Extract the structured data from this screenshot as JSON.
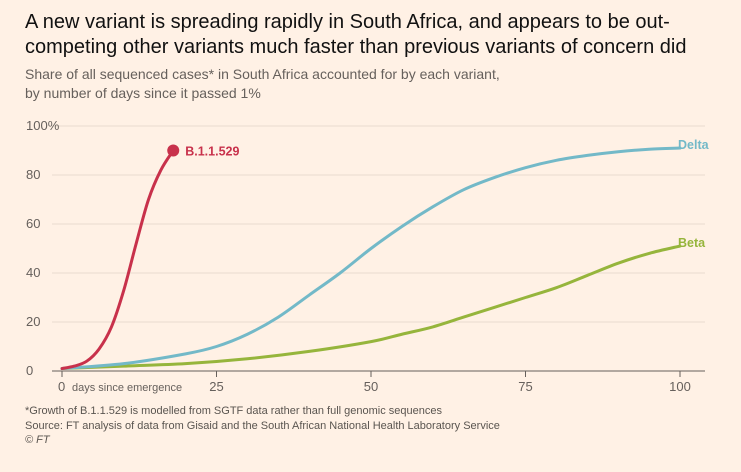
{
  "chart_data": {
    "type": "line",
    "title": "A new variant is spreading rapidly in South Africa, and appears to be out-competing other variants much faster than previous variants of concern did",
    "subtitle_lines": [
      "Share of all sequenced cases* in South Africa accounted for by each variant,",
      "by number of days since it passed 1%"
    ],
    "xlabel": "days since emergence",
    "xlim": [
      0,
      100
    ],
    "ylim": [
      0,
      100
    ],
    "x_ticks": [
      "0",
      "25",
      "50",
      "75",
      "100"
    ],
    "y_ticks": [
      "0",
      "20",
      "40",
      "60",
      "80",
      "100%"
    ],
    "grid": true,
    "series": [
      {
        "name": "B.1.1.529",
        "color": "#c8314b",
        "x": [
          0,
          2,
          4,
          6,
          8,
          10,
          12,
          14,
          16,
          18
        ],
        "y": [
          1,
          2,
          4,
          9,
          18,
          33,
          52,
          70,
          82,
          90
        ]
      },
      {
        "name": "Delta",
        "color": "#73b9c8",
        "x": [
          0,
          10,
          20,
          25,
          30,
          35,
          40,
          45,
          50,
          55,
          60,
          65,
          70,
          75,
          80,
          85,
          90,
          95,
          100
        ],
        "y": [
          1,
          3,
          7,
          10,
          15,
          22,
          31,
          40,
          50,
          59,
          67,
          74,
          79,
          83,
          86,
          88,
          89.5,
          90.5,
          91
        ]
      },
      {
        "name": "Beta",
        "color": "#96b53c",
        "x": [
          0,
          10,
          20,
          30,
          40,
          50,
          55,
          60,
          65,
          70,
          75,
          80,
          85,
          90,
          95,
          100
        ],
        "y": [
          1,
          2,
          3,
          5,
          8,
          12,
          15,
          18,
          22,
          26,
          30,
          34,
          39,
          44,
          48,
          51
        ]
      }
    ]
  },
  "notes": [
    "*Growth of B.1.1.529 is modelled from SGTF data rather than full genomic sequences",
    "Source: FT analysis of data from Gisaid and the South African National Health Laboratory Service",
    "© FT"
  ]
}
